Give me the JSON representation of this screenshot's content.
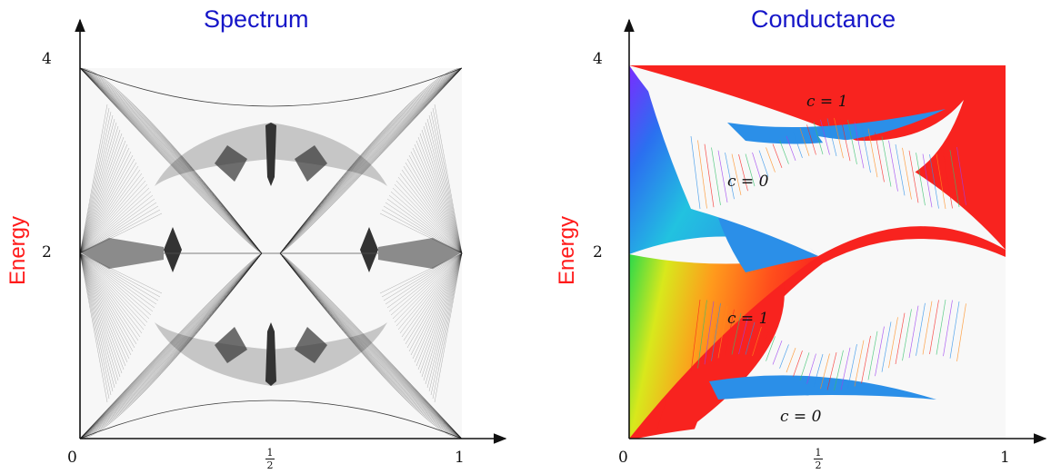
{
  "left_panel": {
    "title": "Spectrum",
    "ylabel": "Energy",
    "yticks": [
      "4",
      "2"
    ],
    "xticks": {
      "zero": "0",
      "half_num": "1",
      "half_den": "2",
      "one": "1"
    }
  },
  "right_panel": {
    "title": "Conductance",
    "ylabel": "Energy",
    "yticks": [
      "4",
      "2"
    ],
    "xticks": {
      "zero": "0",
      "half_num": "1",
      "half_den": "2",
      "one": "1"
    },
    "regions": {
      "c1_top": "c = 1",
      "c0_upper": "c = 0",
      "c1_lower": "c = 1",
      "c0_bottom": "c = 0"
    }
  },
  "colors": {
    "title": "#1616c8",
    "ylabel": "#ff1a1a",
    "conductance_red": "#f8231f",
    "conductance_blue": "#2b8fe8",
    "spectrum_ink": "#111111"
  }
}
